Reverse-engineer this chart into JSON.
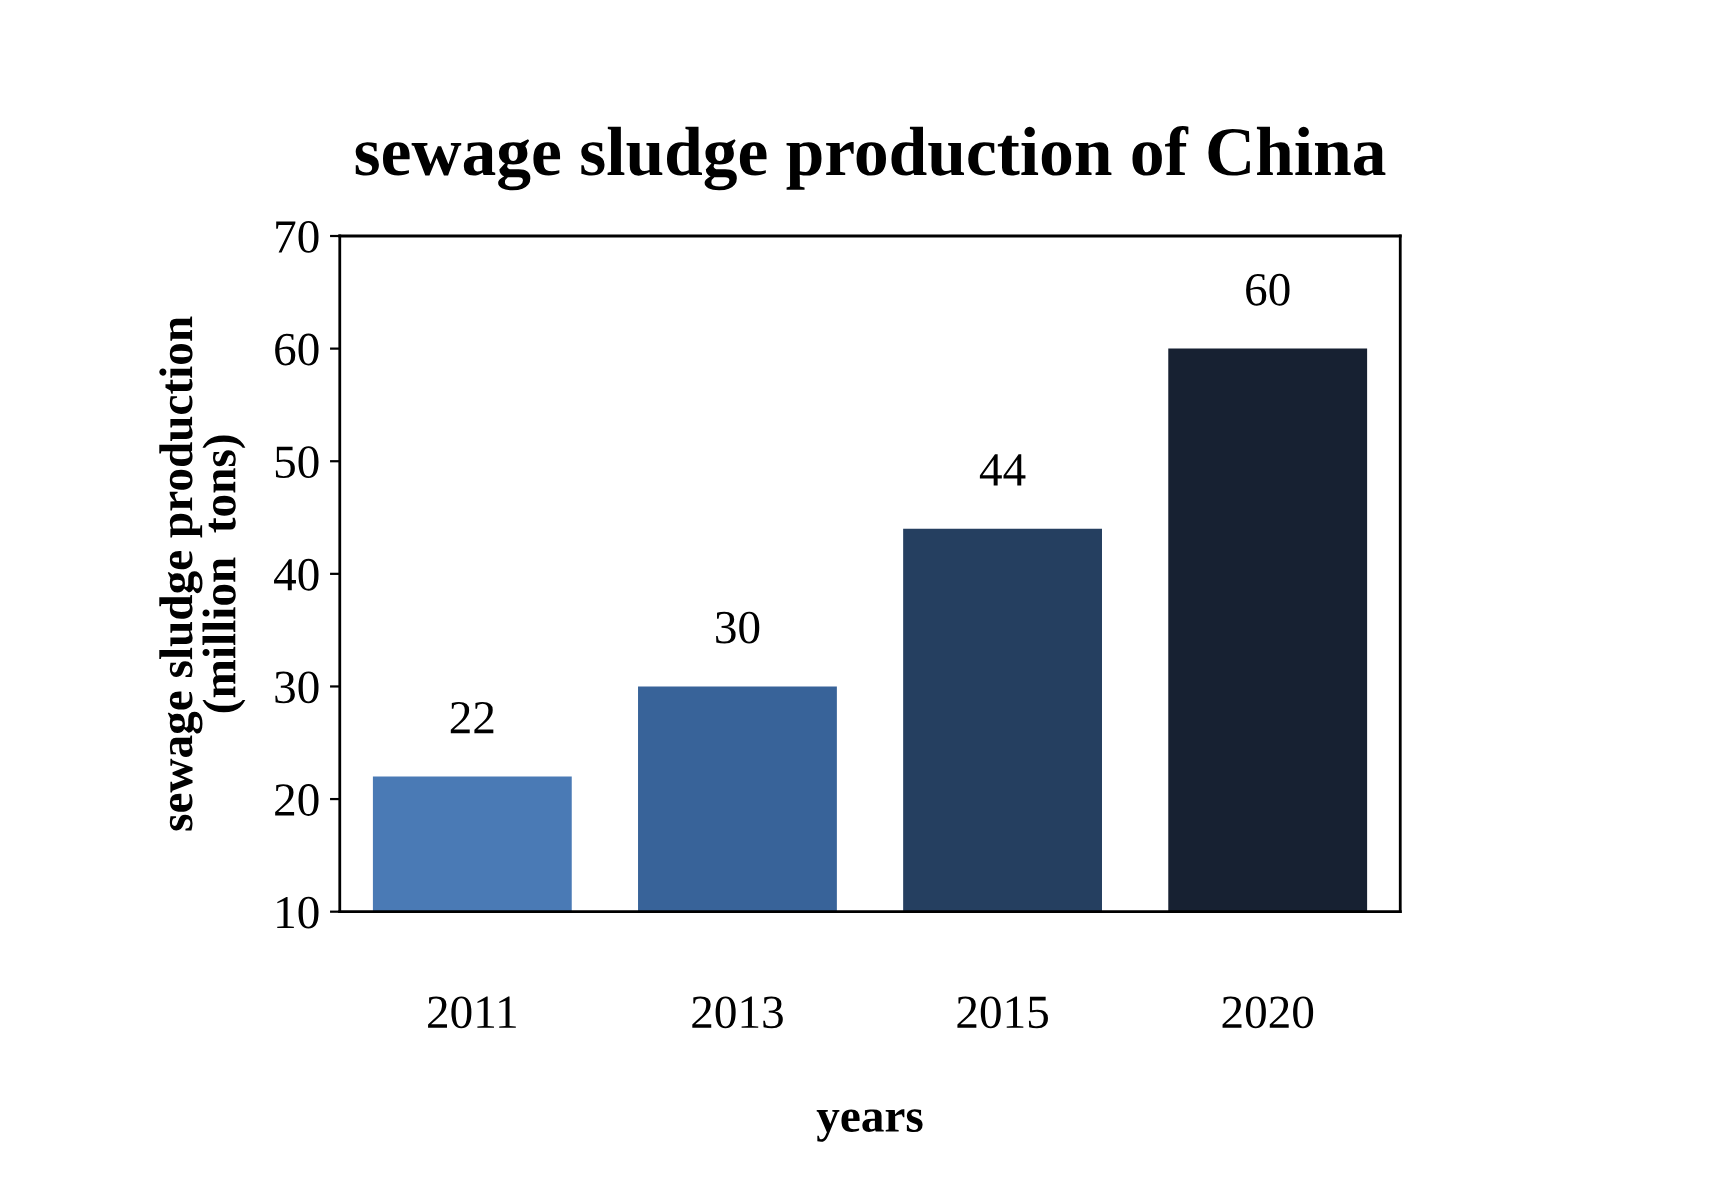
{
  "chart_data": {
    "type": "bar",
    "title": "sewage sludge production of China",
    "xlabel": "years",
    "ylabel": "sewage sludge production\n(million  tons)",
    "categories": [
      "2011",
      "2013",
      "2015",
      "2020"
    ],
    "values": [
      22,
      30,
      44,
      60
    ],
    "colors": [
      "#4a7ab5",
      "#386399",
      "#253f60",
      "#172132"
    ],
    "ylim": [
      10,
      70
    ],
    "yticks": [
      10,
      20,
      30,
      40,
      50,
      60,
      70
    ],
    "grid": false,
    "data_labels": true
  }
}
